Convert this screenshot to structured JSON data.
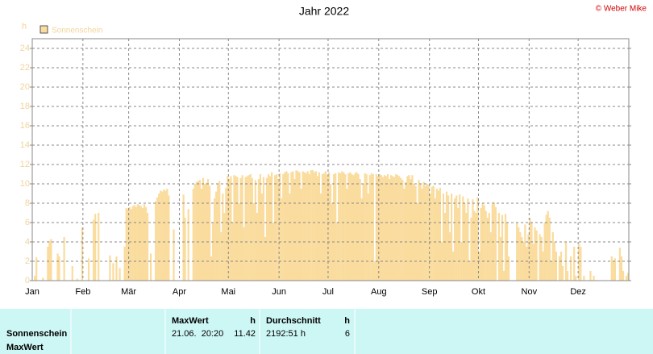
{
  "chart_data": {
    "type": "bar",
    "title": "Jahr 2022",
    "ylabel": "h",
    "copyright": "© Weber Mike",
    "categories": [
      "Jan",
      "Feb",
      "Mär",
      "Apr",
      "Mai",
      "Jun",
      "Jul",
      "Aug",
      "Sep",
      "Okt",
      "Nov",
      "Dez"
    ],
    "series": [
      {
        "name": "Sonnenschein",
        "color": "#fadc9e",
        "values": [
          [
            0,
            0.5,
            2.4,
            0,
            0,
            0,
            0.3,
            0,
            0,
            3.5,
            4.1,
            4.3,
            0,
            0,
            0,
            2.8,
            2.5,
            0,
            0,
            4.5,
            0,
            0,
            0,
            0,
            1.5,
            0,
            0,
            0.2,
            0,
            0,
            5.5
          ],
          [
            0,
            0,
            0,
            2.3,
            0,
            0,
            6.3,
            6.9,
            0,
            7.0,
            0,
            0,
            0,
            0,
            0,
            0,
            2.6,
            0,
            1.8,
            0,
            2.5,
            0,
            1.3,
            0,
            0,
            3.5,
            7.5,
            7.4
          ],
          [
            7.6,
            7.4,
            7.7,
            7.8,
            7.6,
            7.9,
            7.8,
            7.7,
            7.5,
            7.9,
            7.6,
            7.0,
            0,
            2.8,
            0,
            0,
            8.2,
            8.6,
            9.0,
            9.3,
            9.2,
            9.4,
            9.3,
            9.5,
            8.8,
            0,
            0,
            5.3,
            0,
            0,
            0
          ],
          [
            0,
            0,
            8.9,
            6.5,
            0,
            7.4,
            0,
            0,
            9.5,
            10.0,
            10.2,
            10.3,
            10.4,
            9.5,
            10.6,
            10.0,
            10.1,
            10.5,
            9.8,
            2.5,
            6.0,
            8.5,
            9.2,
            10.0,
            10.3,
            5.0,
            9.0,
            7.0,
            9.6,
            10.8
          ],
          [
            10.5,
            10.8,
            6.0,
            10.9,
            10.8,
            10.7,
            8.0,
            10.6,
            10.9,
            5.5,
            10.7,
            10.8,
            10.9,
            11.0,
            10.6,
            8.0,
            10.4,
            7.0,
            10.5,
            11.0,
            9.0,
            10.7,
            4.5,
            10.6,
            11.0,
            10.8,
            11.2,
            6.0,
            10.9,
            11.0,
            10.5
          ],
          [
            11.1,
            8.5,
            11.0,
            11.2,
            11.3,
            11.1,
            9.0,
            11.2,
            11.3,
            10.5,
            11.4,
            11.3,
            11.2,
            9.5,
            11.3,
            11.2,
            11.1,
            11.3,
            11.0,
            11.4,
            11.42,
            11.2,
            11.3,
            10.8,
            11.2,
            9.0,
            11.0,
            11.1,
            11.3,
            10.9
          ],
          [
            11.2,
            10.0,
            8.0,
            11.0,
            11.1,
            6.0,
            11.2,
            11.1,
            11.3,
            11.2,
            11.0,
            9.5,
            11.1,
            11.2,
            11.0,
            10.9,
            11.1,
            11.2,
            11.0,
            10.5,
            8.5,
            10.0,
            11.1,
            11.0,
            9.0,
            10.9,
            11.1,
            11.0,
            2.0,
            11.0,
            10.8
          ],
          [
            11.0,
            10.9,
            10.7,
            10.9,
            10.8,
            11.0,
            10.5,
            10.9,
            10.8,
            10.7,
            11.0,
            10.9,
            10.8,
            10.6,
            10.4,
            9.5,
            10.2,
            10.8,
            10.9,
            10.5,
            10.9,
            10.0,
            9.8,
            8.0,
            10.4,
            10.0,
            9.5,
            10.2,
            9.8,
            10.0,
            9.9
          ],
          [
            9.0,
            9.7,
            9.8,
            8.5,
            9.5,
            9.3,
            9.6,
            4.0,
            9.0,
            7.0,
            9.2,
            8.8,
            5.0,
            9.0,
            3.0,
            8.5,
            8.8,
            7.5,
            8.9,
            4.0,
            8.7,
            8.0,
            7.0,
            8.5,
            2.0,
            6.5,
            8.4,
            7.2,
            7.0,
            8.6
          ],
          [
            3.0,
            7.5,
            8.0,
            7.8,
            7.2,
            6.5,
            7.0,
            5.0,
            7.9,
            8.1,
            7.6,
            0,
            7.0,
            4.5,
            6.8,
            1.0,
            6.9,
            6.0,
            2.5,
            0,
            0,
            0,
            0,
            6.0,
            5.5,
            5.0,
            4.5,
            4.0,
            5.8,
            3.5,
            4.8
          ],
          [
            6.5,
            6.0,
            3.8,
            5.5,
            5.2,
            0,
            4.8,
            4.5,
            3.0,
            6.0,
            6.8,
            7.2,
            6.5,
            2.0,
            5.0,
            4.0,
            3.0,
            0,
            2.5,
            3.0,
            1.5,
            0,
            4.0,
            1.0,
            0,
            2.5,
            0,
            3.5,
            0.5,
            0
          ],
          [
            3.8,
            3.5,
            0,
            0.5,
            0,
            0,
            0,
            1.0,
            0,
            0.5,
            0,
            0,
            0,
            0,
            0,
            0,
            0,
            0,
            0,
            0,
            2.5,
            2.0,
            2.3,
            0,
            0,
            3.4,
            2.5,
            1.0,
            0,
            0.5,
            0.8
          ]
        ]
      }
    ],
    "ylim": [
      0,
      25
    ],
    "yticks": [
      0,
      2,
      4,
      6,
      8,
      10,
      12,
      14,
      16,
      18,
      20,
      22,
      24
    ],
    "grid": true,
    "legend": "top-left"
  },
  "summary": {
    "row_labels": [
      "Sonnenschein",
      "MaxWert"
    ],
    "columns": [
      {
        "title": "MaxWert",
        "unit": "h",
        "when": "21.06.  20:20",
        "value": 11.42
      },
      {
        "title": "Durchschnitt",
        "unit": "h",
        "when": "2192:51 h",
        "value": 6
      }
    ]
  }
}
